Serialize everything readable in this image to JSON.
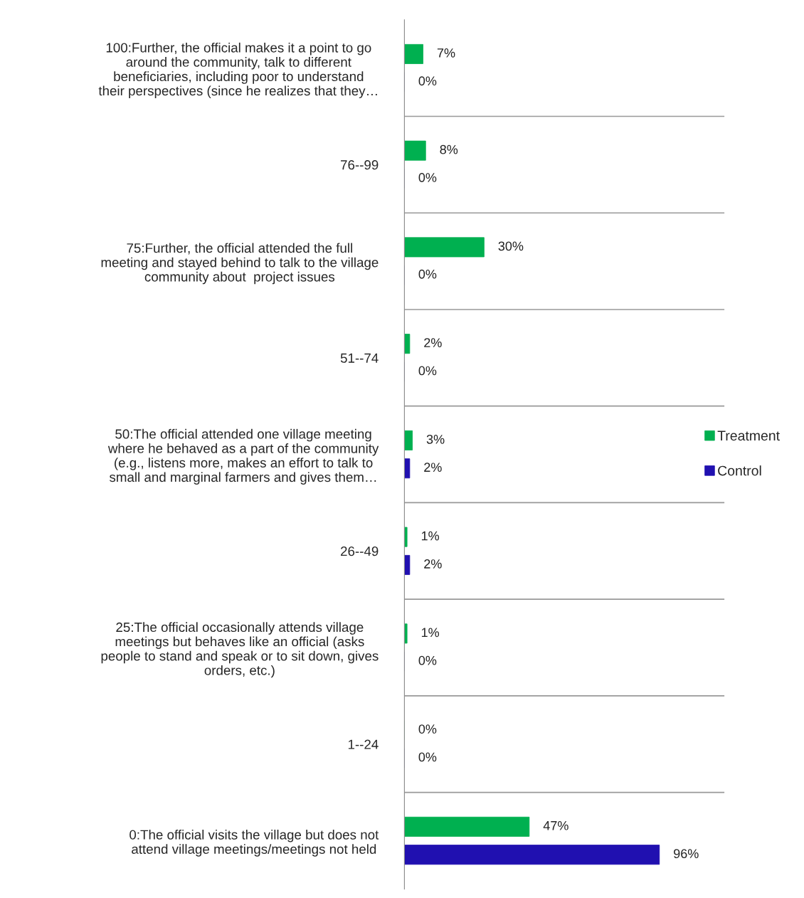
{
  "chart_data": {
    "type": "bar",
    "orientation": "horizontal",
    "categories": [
      "100:Further, the official makes it a point to go\naround the community, talk to different\nbeneficiaries, including poor to understand\ntheir perspectives (since he realizes that they…",
      "76--99",
      "75:Further, the official attended the full\nmeeting and stayed behind to talk to the village\ncommunity about  project issues",
      "51--74",
      "50:The official attended one village meeting\nwhere he behaved as a part of the community\n(e.g., listens more, makes an effort to talk to\nsmall and marginal farmers and gives them…",
      "26--49",
      "25:The official occasionally attends village\nmeetings but behaves like an official (asks\npeople to stand and speak or to sit down, gives\norders, etc.)",
      "1--24",
      "0:The official visits the village but does not\nattend village meetings/meetings not held"
    ],
    "series": [
      {
        "name": "Treatment",
        "color": "#00b050",
        "values": [
          7,
          8,
          30,
          2,
          3,
          1,
          1,
          0,
          47
        ],
        "value_labels": [
          "7%",
          "8%",
          "30%",
          "2%",
          "3%",
          "1%",
          "1%",
          "0%",
          "47%"
        ]
      },
      {
        "name": "Control",
        "color": "#2010b0",
        "values": [
          0,
          0,
          0,
          0,
          2,
          2,
          0,
          0,
          96
        ],
        "value_labels": [
          "0%",
          "0%",
          "0%",
          "0%",
          "2%",
          "2%",
          "0%",
          "0%",
          "96%"
        ]
      }
    ],
    "grid": "y",
    "legend": "right"
  }
}
